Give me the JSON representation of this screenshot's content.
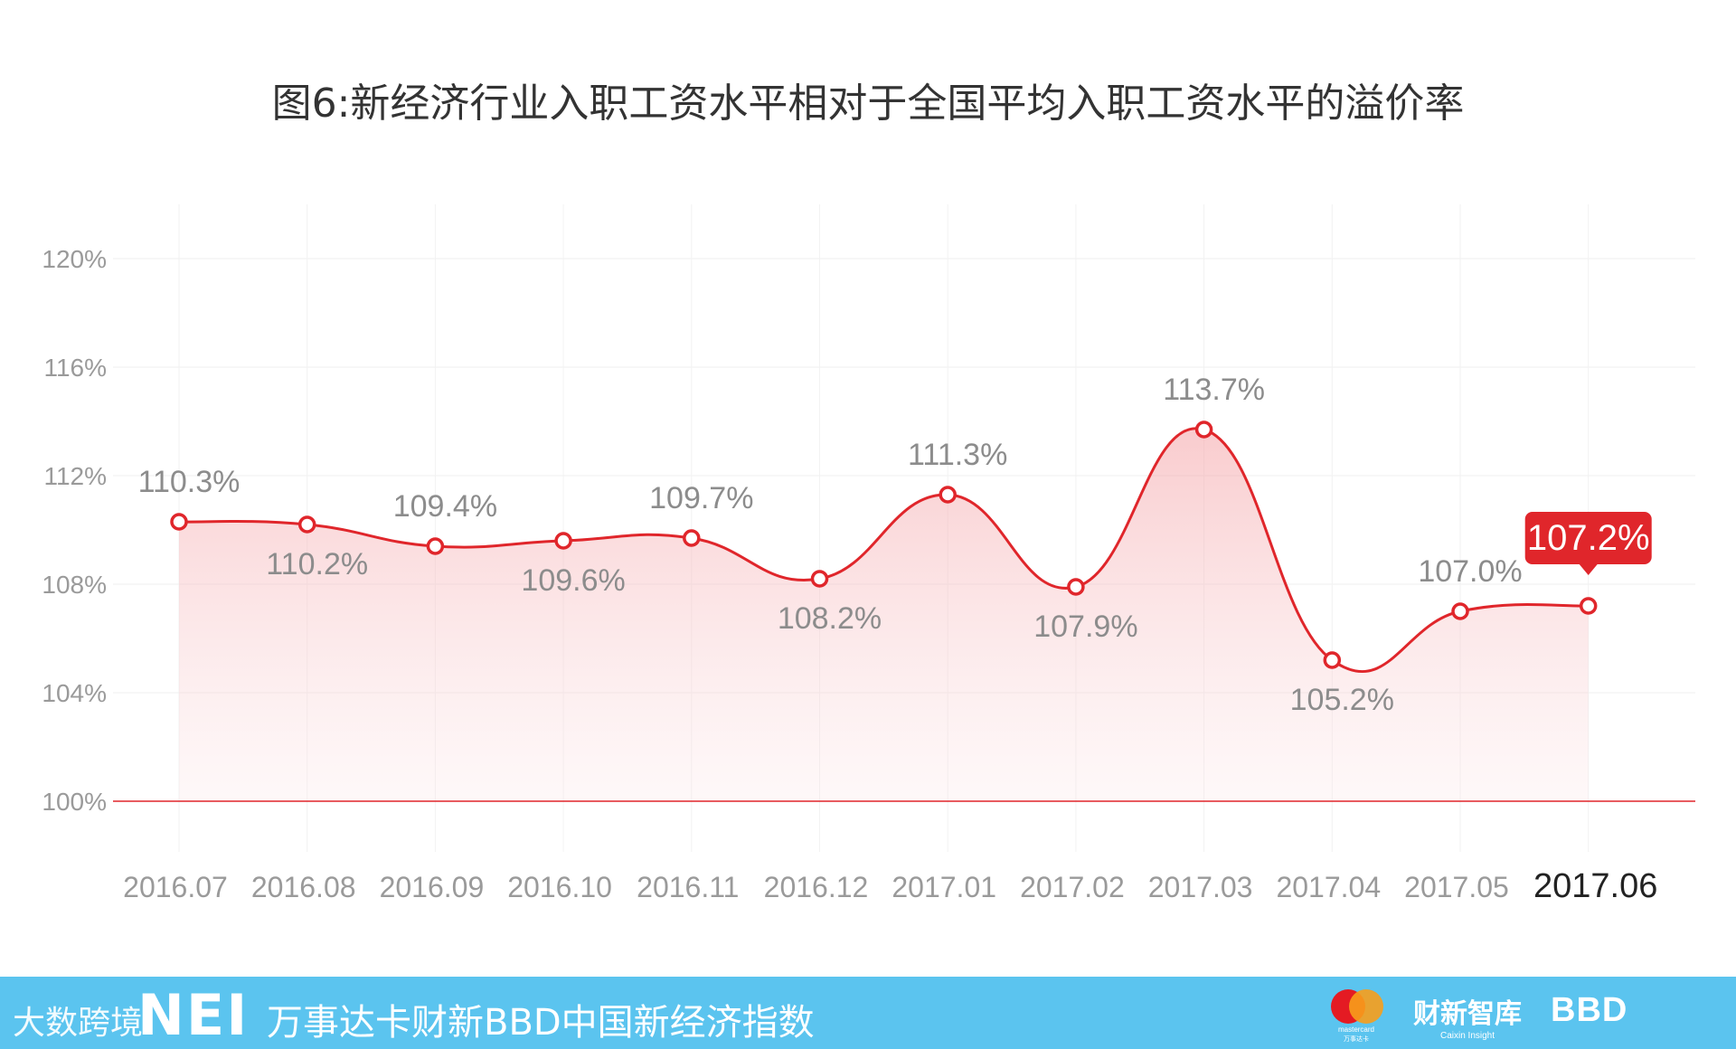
{
  "title": "图6:新经济行业入职工资水平相对于全国平均入职工资水平的溢价率",
  "chart_data": {
    "type": "area",
    "categories": [
      "2016.07",
      "2016.08",
      "2016.09",
      "2016.10",
      "2016.11",
      "2016.12",
      "2017.01",
      "2017.02",
      "2017.03",
      "2017.04",
      "2017.05",
      "2017.06"
    ],
    "values": [
      110.3,
      110.2,
      109.4,
      109.6,
      109.7,
      108.2,
      111.3,
      107.9,
      113.7,
      105.2,
      107.0,
      107.2
    ],
    "data_labels": [
      "110.3%",
      "110.2%",
      "109.4%",
      "109.6%",
      "109.7%",
      "108.2%",
      "111.3%",
      "107.9%",
      "113.7%",
      "105.2%",
      "107.0%",
      "107.2%"
    ],
    "yticks": [
      "100%",
      "104%",
      "108%",
      "112%",
      "116%",
      "120%"
    ],
    "ylim": [
      100,
      120
    ],
    "title": "图6:新经济行业入职工资水平相对于全国平均入职工资水平的溢价率",
    "xlabel": "",
    "ylabel": "",
    "highlight_last": true,
    "grid": true,
    "colors": {
      "line": "#e0262b",
      "label": "#8c8c8c",
      "baseline": "#e0262b",
      "highlight_bg": "#e0262b",
      "highlight_text": "#ffffff"
    }
  },
  "footer": {
    "watermark": "大数跨境",
    "logo": "NEI",
    "title": "万事达卡财新BBD中国新经济指数",
    "mastercard_text": "mastercard",
    "mastercard_sub": "万事达卡",
    "caixin_main": "财新智库",
    "caixin_sub": "Caixin Insight",
    "bbd": "BBD",
    "bg_color": "#5bc4ef"
  }
}
